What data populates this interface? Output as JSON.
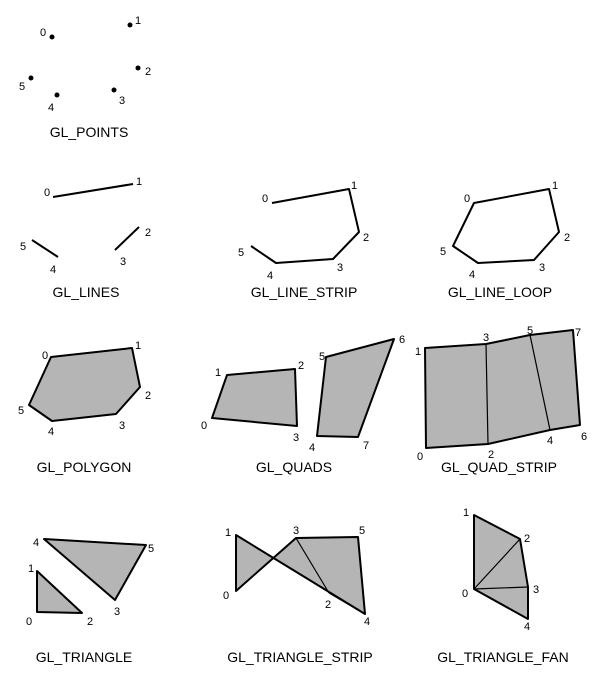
{
  "colors": {
    "fill": "#b5b5b5",
    "stroke": "#000000"
  },
  "panels": [
    {
      "title": "GL_POINTS",
      "type": "points",
      "vertex_labels": [
        "0",
        "1",
        "2",
        "3",
        "4",
        "5"
      ]
    },
    {
      "title": "GL_LINES",
      "type": "lines",
      "vertex_labels": [
        "0",
        "1",
        "2",
        "3",
        "4",
        "5"
      ]
    },
    {
      "title": "GL_LINE_STRIP",
      "type": "line_strip",
      "vertex_labels": [
        "0",
        "1",
        "2",
        "3",
        "4",
        "5"
      ]
    },
    {
      "title": "GL_LINE_LOOP",
      "type": "line_loop",
      "vertex_labels": [
        "0",
        "1",
        "2",
        "3",
        "4",
        "5"
      ]
    },
    {
      "title": "GL_POLYGON",
      "type": "polygon",
      "vertex_labels": [
        "0",
        "1",
        "2",
        "3",
        "4",
        "5"
      ]
    },
    {
      "title": "GL_QUADS",
      "type": "quads",
      "vertex_labels": [
        "0",
        "1",
        "2",
        "3",
        "4",
        "5",
        "6",
        "7"
      ]
    },
    {
      "title": "GL_QUAD_STRIP",
      "type": "quad_strip",
      "vertex_labels": [
        "0",
        "1",
        "2",
        "3",
        "4",
        "5",
        "6",
        "7"
      ]
    },
    {
      "title": "GL_TRIANGLE",
      "type": "triangles",
      "vertex_labels": [
        "0",
        "1",
        "2",
        "3",
        "4",
        "5"
      ]
    },
    {
      "title": "GL_TRIANGLE_STRIP",
      "type": "triangle_strip",
      "vertex_labels": [
        "0",
        "1",
        "2",
        "3",
        "4",
        "5"
      ]
    },
    {
      "title": "GL_TRIANGLE_FAN",
      "type": "triangle_fan",
      "vertex_labels": [
        "0",
        "1",
        "2",
        "3",
        "4"
      ]
    }
  ]
}
